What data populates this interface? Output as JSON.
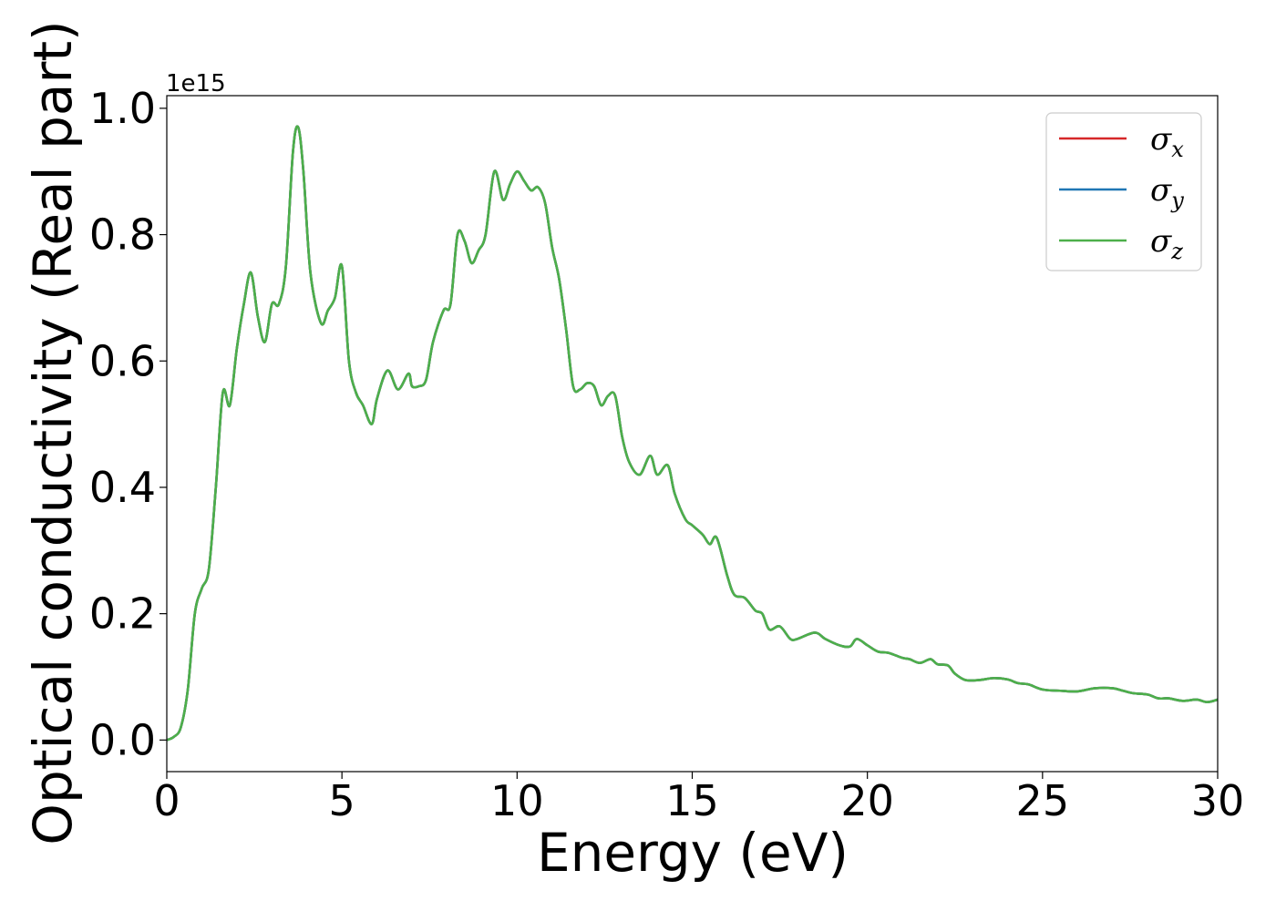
{
  "chart_data": {
    "type": "line",
    "title": "",
    "xlabel": "Energy (eV)",
    "ylabel": "Optical conductivity (Real part)",
    "y_offset_label": "1e15",
    "xlim": [
      0,
      30
    ],
    "ylim": [
      -0.05,
      1.02
    ],
    "xticks": [
      0,
      5,
      10,
      15,
      20,
      25,
      30
    ],
    "xtick_labels": [
      "0",
      "5",
      "10",
      "15",
      "20",
      "25",
      "30"
    ],
    "yticks": [
      0.0,
      0.2,
      0.4,
      0.6,
      0.8,
      1.0
    ],
    "ytick_labels": [
      "0.0",
      "0.2",
      "0.4",
      "0.6",
      "0.8",
      "1.0"
    ],
    "grid": false,
    "legend_position": "top-right",
    "x": [
      0,
      0.2,
      0.4,
      0.6,
      0.8,
      1.0,
      1.2,
      1.4,
      1.6,
      1.8,
      2.0,
      2.2,
      2.4,
      2.6,
      2.8,
      3.0,
      3.2,
      3.4,
      3.6,
      3.75,
      3.9,
      4.1,
      4.4,
      4.6,
      4.8,
      5.0,
      5.2,
      5.4,
      5.6,
      5.85,
      6.0,
      6.3,
      6.6,
      6.9,
      7.0,
      7.2,
      7.4,
      7.6,
      7.9,
      8.1,
      8.3,
      8.5,
      8.7,
      8.9,
      9.1,
      9.35,
      9.6,
      9.8,
      10.0,
      10.2,
      10.4,
      10.6,
      10.8,
      11.0,
      11.2,
      11.4,
      11.6,
      11.8,
      12.0,
      12.2,
      12.4,
      12.6,
      12.8,
      13.0,
      13.2,
      13.5,
      13.8,
      14.0,
      14.3,
      14.5,
      14.8,
      15.0,
      15.3,
      15.5,
      15.7,
      16.0,
      16.2,
      16.5,
      16.8,
      17.0,
      17.2,
      17.5,
      17.8,
      18.0,
      18.5,
      18.8,
      19.2,
      19.5,
      19.7,
      20.0,
      20.3,
      20.6,
      21.0,
      21.2,
      21.5,
      21.8,
      22.0,
      22.3,
      22.5,
      22.8,
      23.2,
      23.6,
      24.0,
      24.3,
      24.6,
      25.0,
      25.5,
      26.0,
      26.5,
      27.0,
      27.3,
      27.6,
      28.0,
      28.3,
      28.6,
      29.0,
      29.4,
      29.7,
      30.0
    ],
    "series": [
      {
        "name": "σx",
        "color": "#d62728",
        "values": [
          0.0,
          0.005,
          0.02,
          0.08,
          0.2,
          0.24,
          0.27,
          0.4,
          0.55,
          0.53,
          0.62,
          0.69,
          0.74,
          0.67,
          0.63,
          0.69,
          0.69,
          0.75,
          0.93,
          0.97,
          0.9,
          0.74,
          0.66,
          0.68,
          0.7,
          0.75,
          0.6,
          0.55,
          0.53,
          0.5,
          0.54,
          0.585,
          0.555,
          0.58,
          0.56,
          0.56,
          0.57,
          0.63,
          0.68,
          0.69,
          0.8,
          0.79,
          0.755,
          0.775,
          0.8,
          0.9,
          0.855,
          0.88,
          0.9,
          0.885,
          0.87,
          0.875,
          0.85,
          0.78,
          0.73,
          0.65,
          0.56,
          0.555,
          0.565,
          0.56,
          0.53,
          0.545,
          0.545,
          0.48,
          0.44,
          0.42,
          0.45,
          0.42,
          0.435,
          0.39,
          0.35,
          0.34,
          0.325,
          0.31,
          0.32,
          0.26,
          0.23,
          0.225,
          0.205,
          0.2,
          0.175,
          0.18,
          0.16,
          0.16,
          0.17,
          0.16,
          0.15,
          0.148,
          0.16,
          0.15,
          0.14,
          0.138,
          0.13,
          0.128,
          0.122,
          0.128,
          0.12,
          0.118,
          0.105,
          0.095,
          0.095,
          0.098,
          0.096,
          0.09,
          0.088,
          0.08,
          0.078,
          0.077,
          0.082,
          0.082,
          0.078,
          0.074,
          0.072,
          0.066,
          0.066,
          0.062,
          0.064,
          0.06,
          0.064
        ]
      },
      {
        "name": "σy",
        "color": "#1f77b4",
        "values": [
          0.0,
          0.005,
          0.02,
          0.08,
          0.2,
          0.24,
          0.27,
          0.4,
          0.55,
          0.53,
          0.62,
          0.69,
          0.74,
          0.67,
          0.63,
          0.69,
          0.69,
          0.75,
          0.93,
          0.97,
          0.9,
          0.74,
          0.66,
          0.68,
          0.7,
          0.75,
          0.6,
          0.55,
          0.53,
          0.5,
          0.54,
          0.585,
          0.555,
          0.58,
          0.56,
          0.56,
          0.57,
          0.63,
          0.68,
          0.69,
          0.8,
          0.79,
          0.755,
          0.775,
          0.8,
          0.9,
          0.855,
          0.88,
          0.9,
          0.885,
          0.87,
          0.875,
          0.85,
          0.78,
          0.73,
          0.65,
          0.56,
          0.555,
          0.565,
          0.56,
          0.53,
          0.545,
          0.545,
          0.48,
          0.44,
          0.42,
          0.45,
          0.42,
          0.435,
          0.39,
          0.35,
          0.34,
          0.325,
          0.31,
          0.32,
          0.26,
          0.23,
          0.225,
          0.205,
          0.2,
          0.175,
          0.18,
          0.16,
          0.16,
          0.17,
          0.16,
          0.15,
          0.148,
          0.16,
          0.15,
          0.14,
          0.138,
          0.13,
          0.128,
          0.122,
          0.128,
          0.12,
          0.118,
          0.105,
          0.095,
          0.095,
          0.098,
          0.096,
          0.09,
          0.088,
          0.08,
          0.078,
          0.077,
          0.082,
          0.082,
          0.078,
          0.074,
          0.072,
          0.066,
          0.066,
          0.062,
          0.064,
          0.06,
          0.064
        ]
      },
      {
        "name": "σz",
        "color": "#4daf4a",
        "values": [
          0.0,
          0.005,
          0.02,
          0.08,
          0.2,
          0.24,
          0.27,
          0.4,
          0.55,
          0.53,
          0.62,
          0.69,
          0.74,
          0.67,
          0.63,
          0.69,
          0.69,
          0.75,
          0.93,
          0.97,
          0.9,
          0.74,
          0.66,
          0.68,
          0.7,
          0.75,
          0.6,
          0.55,
          0.53,
          0.5,
          0.54,
          0.585,
          0.555,
          0.58,
          0.56,
          0.56,
          0.57,
          0.63,
          0.68,
          0.69,
          0.8,
          0.79,
          0.755,
          0.775,
          0.8,
          0.9,
          0.855,
          0.88,
          0.9,
          0.885,
          0.87,
          0.875,
          0.85,
          0.78,
          0.73,
          0.65,
          0.56,
          0.555,
          0.565,
          0.56,
          0.53,
          0.545,
          0.545,
          0.48,
          0.44,
          0.42,
          0.45,
          0.42,
          0.435,
          0.39,
          0.35,
          0.34,
          0.325,
          0.31,
          0.32,
          0.26,
          0.23,
          0.225,
          0.205,
          0.2,
          0.175,
          0.18,
          0.16,
          0.16,
          0.17,
          0.16,
          0.15,
          0.148,
          0.16,
          0.15,
          0.14,
          0.138,
          0.13,
          0.128,
          0.122,
          0.128,
          0.12,
          0.118,
          0.105,
          0.095,
          0.095,
          0.098,
          0.096,
          0.09,
          0.088,
          0.08,
          0.078,
          0.077,
          0.082,
          0.082,
          0.078,
          0.074,
          0.072,
          0.066,
          0.066,
          0.062,
          0.064,
          0.06,
          0.064
        ]
      }
    ],
    "legend": [
      {
        "symbol": "σ",
        "subscript": "x",
        "color": "#d62728"
      },
      {
        "symbol": "σ",
        "subscript": "y",
        "color": "#1f77b4"
      },
      {
        "symbol": "σ",
        "subscript": "z",
        "color": "#4daf4a"
      }
    ]
  }
}
